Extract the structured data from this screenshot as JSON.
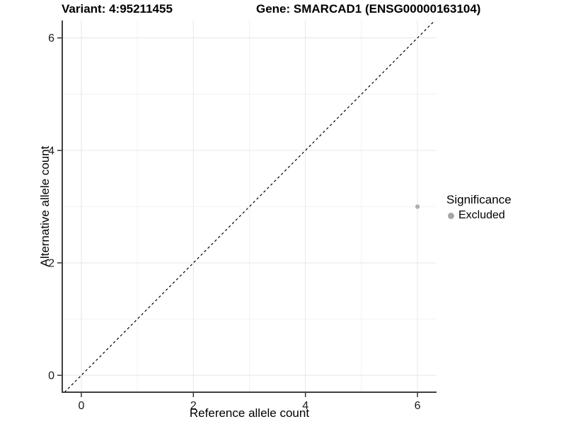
{
  "chart_data": {
    "type": "scatter",
    "title_left": "Variant: 4:95211455",
    "title_right": "Gene: SMARCAD1 (ENSG00000163104)",
    "xlabel": "Reference allele count",
    "ylabel": "Alternative allele count",
    "xlim": [
      -0.34,
      6.34
    ],
    "ylim": [
      -0.3,
      6.31
    ],
    "x_ticks": [
      0,
      2,
      4,
      6
    ],
    "y_ticks": [
      0,
      2,
      4,
      6
    ],
    "minor_grid_x": [
      1,
      3,
      5
    ],
    "minor_grid_y": [
      1,
      3,
      5
    ],
    "grid": "major+minor",
    "identity_line": {
      "style": "dashed",
      "slope": 1,
      "intercept": 0,
      "color": "#000000"
    },
    "series": [
      {
        "name": "Excluded",
        "color": "#b0b0b0",
        "points": [
          [
            6,
            3
          ]
        ]
      }
    ],
    "legend": {
      "title": "Significance",
      "position": "right",
      "items": [
        {
          "label": "Excluded",
          "color": "#a6a6a6"
        }
      ]
    },
    "colors": {
      "background": "#ffffff",
      "text": "#000000",
      "tick_text": "#1a1a1a",
      "axis_line": "#3f3f3f",
      "grid_major": "#e6e6e6",
      "grid_minor": "#f2f2f2"
    }
  }
}
